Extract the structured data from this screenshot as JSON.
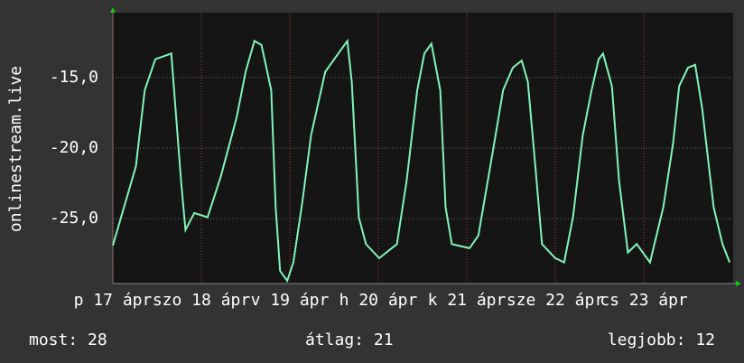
{
  "chart_data": {
    "type": "line",
    "y_label": "onlinestream.live",
    "x": [
      0,
      0.26,
      0.36,
      0.48,
      0.66,
      0.77,
      0.82,
      0.92,
      1.07,
      1.22,
      1.4,
      1.5,
      1.6,
      1.68,
      1.79,
      1.84,
      1.89,
      1.97,
      2.04,
      2.14,
      2.24,
      2.4,
      2.65,
      2.7,
      2.78,
      2.86,
      3.01,
      3.21,
      3.32,
      3.44,
      3.52,
      3.6,
      3.7,
      3.76,
      3.83,
      4.03,
      4.13,
      4.29,
      4.41,
      4.52,
      4.62,
      4.69,
      4.77,
      4.85,
      5.0,
      5.1,
      5.2,
      5.31,
      5.41,
      5.49,
      5.54,
      5.64,
      5.72,
      5.82,
      5.92,
      6.07,
      6.22,
      6.33,
      6.4,
      6.5,
      6.58,
      6.66,
      6.79,
      6.89,
      6.97
    ],
    "series": [
      {
        "color": "#80f5b8",
        "values": [
          -26.9,
          -21.3,
          -15.9,
          -13.7,
          -13.3,
          -22.3,
          -25.8,
          -24.6,
          -24.9,
          -22.0,
          -17.8,
          -14.6,
          -12.4,
          -12.7,
          -15.9,
          -24.2,
          -28.7,
          -29.4,
          -28.1,
          -23.9,
          -19.1,
          -14.6,
          -12.4,
          -15.3,
          -24.9,
          -26.8,
          -27.8,
          -26.8,
          -22.3,
          -15.9,
          -13.3,
          -12.6,
          -15.9,
          -24.2,
          -26.8,
          -27.1,
          -26.2,
          -20.4,
          -15.9,
          -14.3,
          -13.8,
          -15.3,
          -21.0,
          -26.8,
          -27.8,
          -28.1,
          -24.9,
          -19.1,
          -15.9,
          -13.7,
          -13.3,
          -15.6,
          -22.3,
          -27.4,
          -26.8,
          -28.1,
          -24.2,
          -19.7,
          -15.6,
          -14.3,
          -14.1,
          -17.2,
          -24.2,
          -26.8,
          -28.1
        ]
      }
    ],
    "xlim": [
      0,
      7.01
    ],
    "ylim": [
      -29.6,
      -10.4
    ],
    "yticks": [
      {
        "value": -25,
        "label": "-25,0"
      },
      {
        "value": -20,
        "label": "-20,0"
      },
      {
        "value": -15,
        "label": "-15,0"
      }
    ],
    "xticks": [
      {
        "value": 0,
        "label": "p 17 ápr"
      },
      {
        "value": 1,
        "label": "szo 18 ápr"
      },
      {
        "value": 2,
        "label": "v 19 ápr"
      },
      {
        "value": 3,
        "label": "h 20 ápr"
      },
      {
        "value": 4,
        "label": "k 21 ápr"
      },
      {
        "value": 5,
        "label": "sze 22 ápr"
      },
      {
        "value": 6,
        "label": "cs 23 ápr"
      }
    ],
    "grid": true,
    "stats": {
      "current": "most: 28",
      "average": "átlag: 21",
      "best": "legjobb: 12"
    }
  }
}
